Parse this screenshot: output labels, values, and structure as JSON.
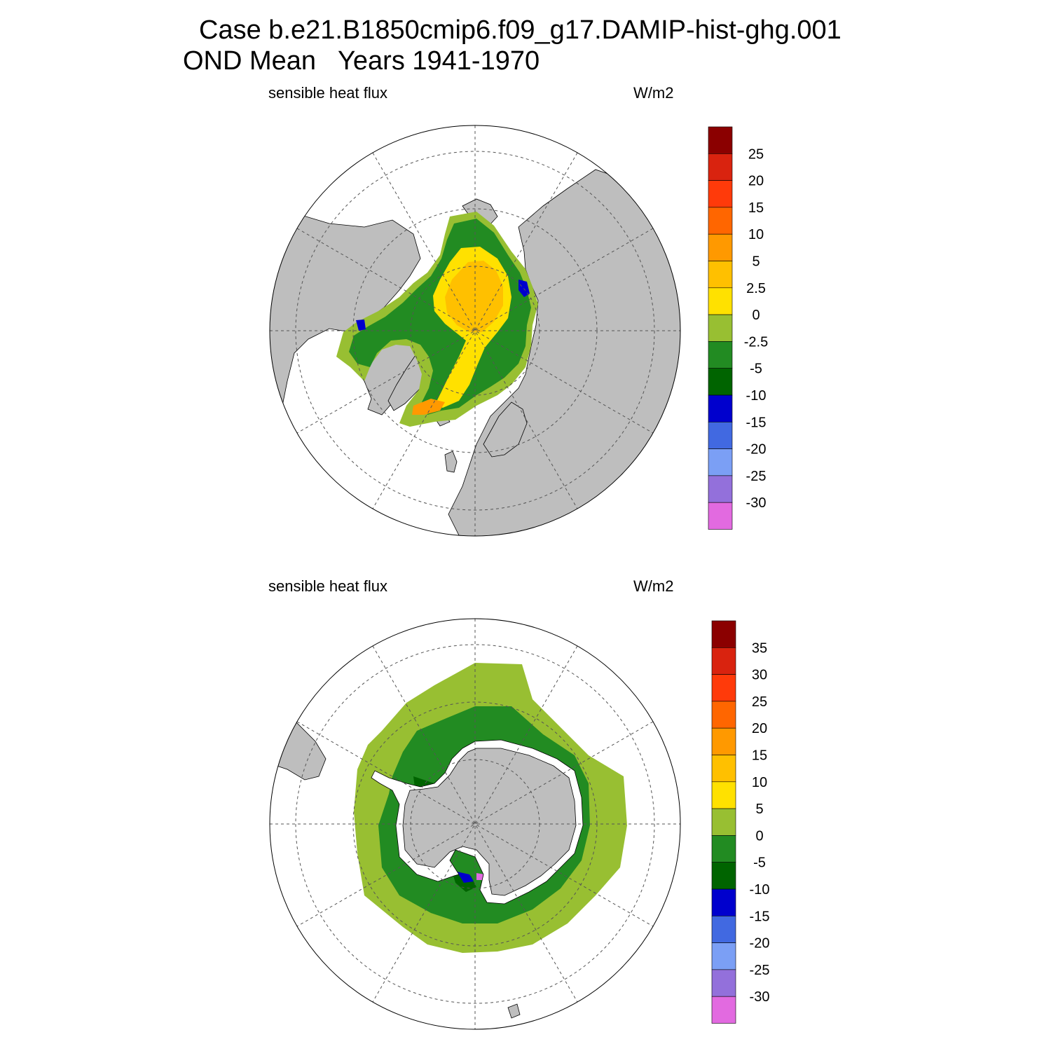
{
  "title": {
    "line1": "Case b.e21.B1850cmip6.f09_g17.DAMIP-hist-ghg.001",
    "line2": "OND Mean   Years 1941-1970"
  },
  "panels": [
    {
      "hemisphere": "north",
      "left_label": "sensible heat flux",
      "right_label": "W/m2",
      "colorbar": {
        "labels": [
          "25",
          "20",
          "15",
          "10",
          "5",
          "2.5",
          "0",
          "-2.5",
          "-5",
          "-10",
          "-15",
          "-20",
          "-25",
          "-30"
        ],
        "colors": [
          "#8b0000",
          "#d9230f",
          "#ff3a0a",
          "#ff6600",
          "#ff9900",
          "#ffc000",
          "#ffe100",
          "#98bf32",
          "#228b22",
          "#006400",
          "#0000cd",
          "#4169e1",
          "#7b9ff5",
          "#9370db",
          "#e26ae0"
        ]
      }
    },
    {
      "hemisphere": "south",
      "left_label": "sensible heat flux",
      "right_label": "W/m2",
      "colorbar": {
        "labels": [
          "35",
          "30",
          "25",
          "20",
          "15",
          "10",
          "5",
          "0",
          "-5",
          "-10",
          "-15",
          "-20",
          "-25",
          "-30"
        ],
        "colors": [
          "#8b0000",
          "#d9230f",
          "#ff3a0a",
          "#ff6600",
          "#ff9900",
          "#ffc000",
          "#ffe100",
          "#98bf32",
          "#228b22",
          "#006400",
          "#0000cd",
          "#4169e1",
          "#7b9ff5",
          "#9370db",
          "#e26ae0"
        ]
      }
    }
  ],
  "colors": {
    "land": "#bebebe",
    "ocean_missing": "#ffffff",
    "grid": "#555555"
  }
}
